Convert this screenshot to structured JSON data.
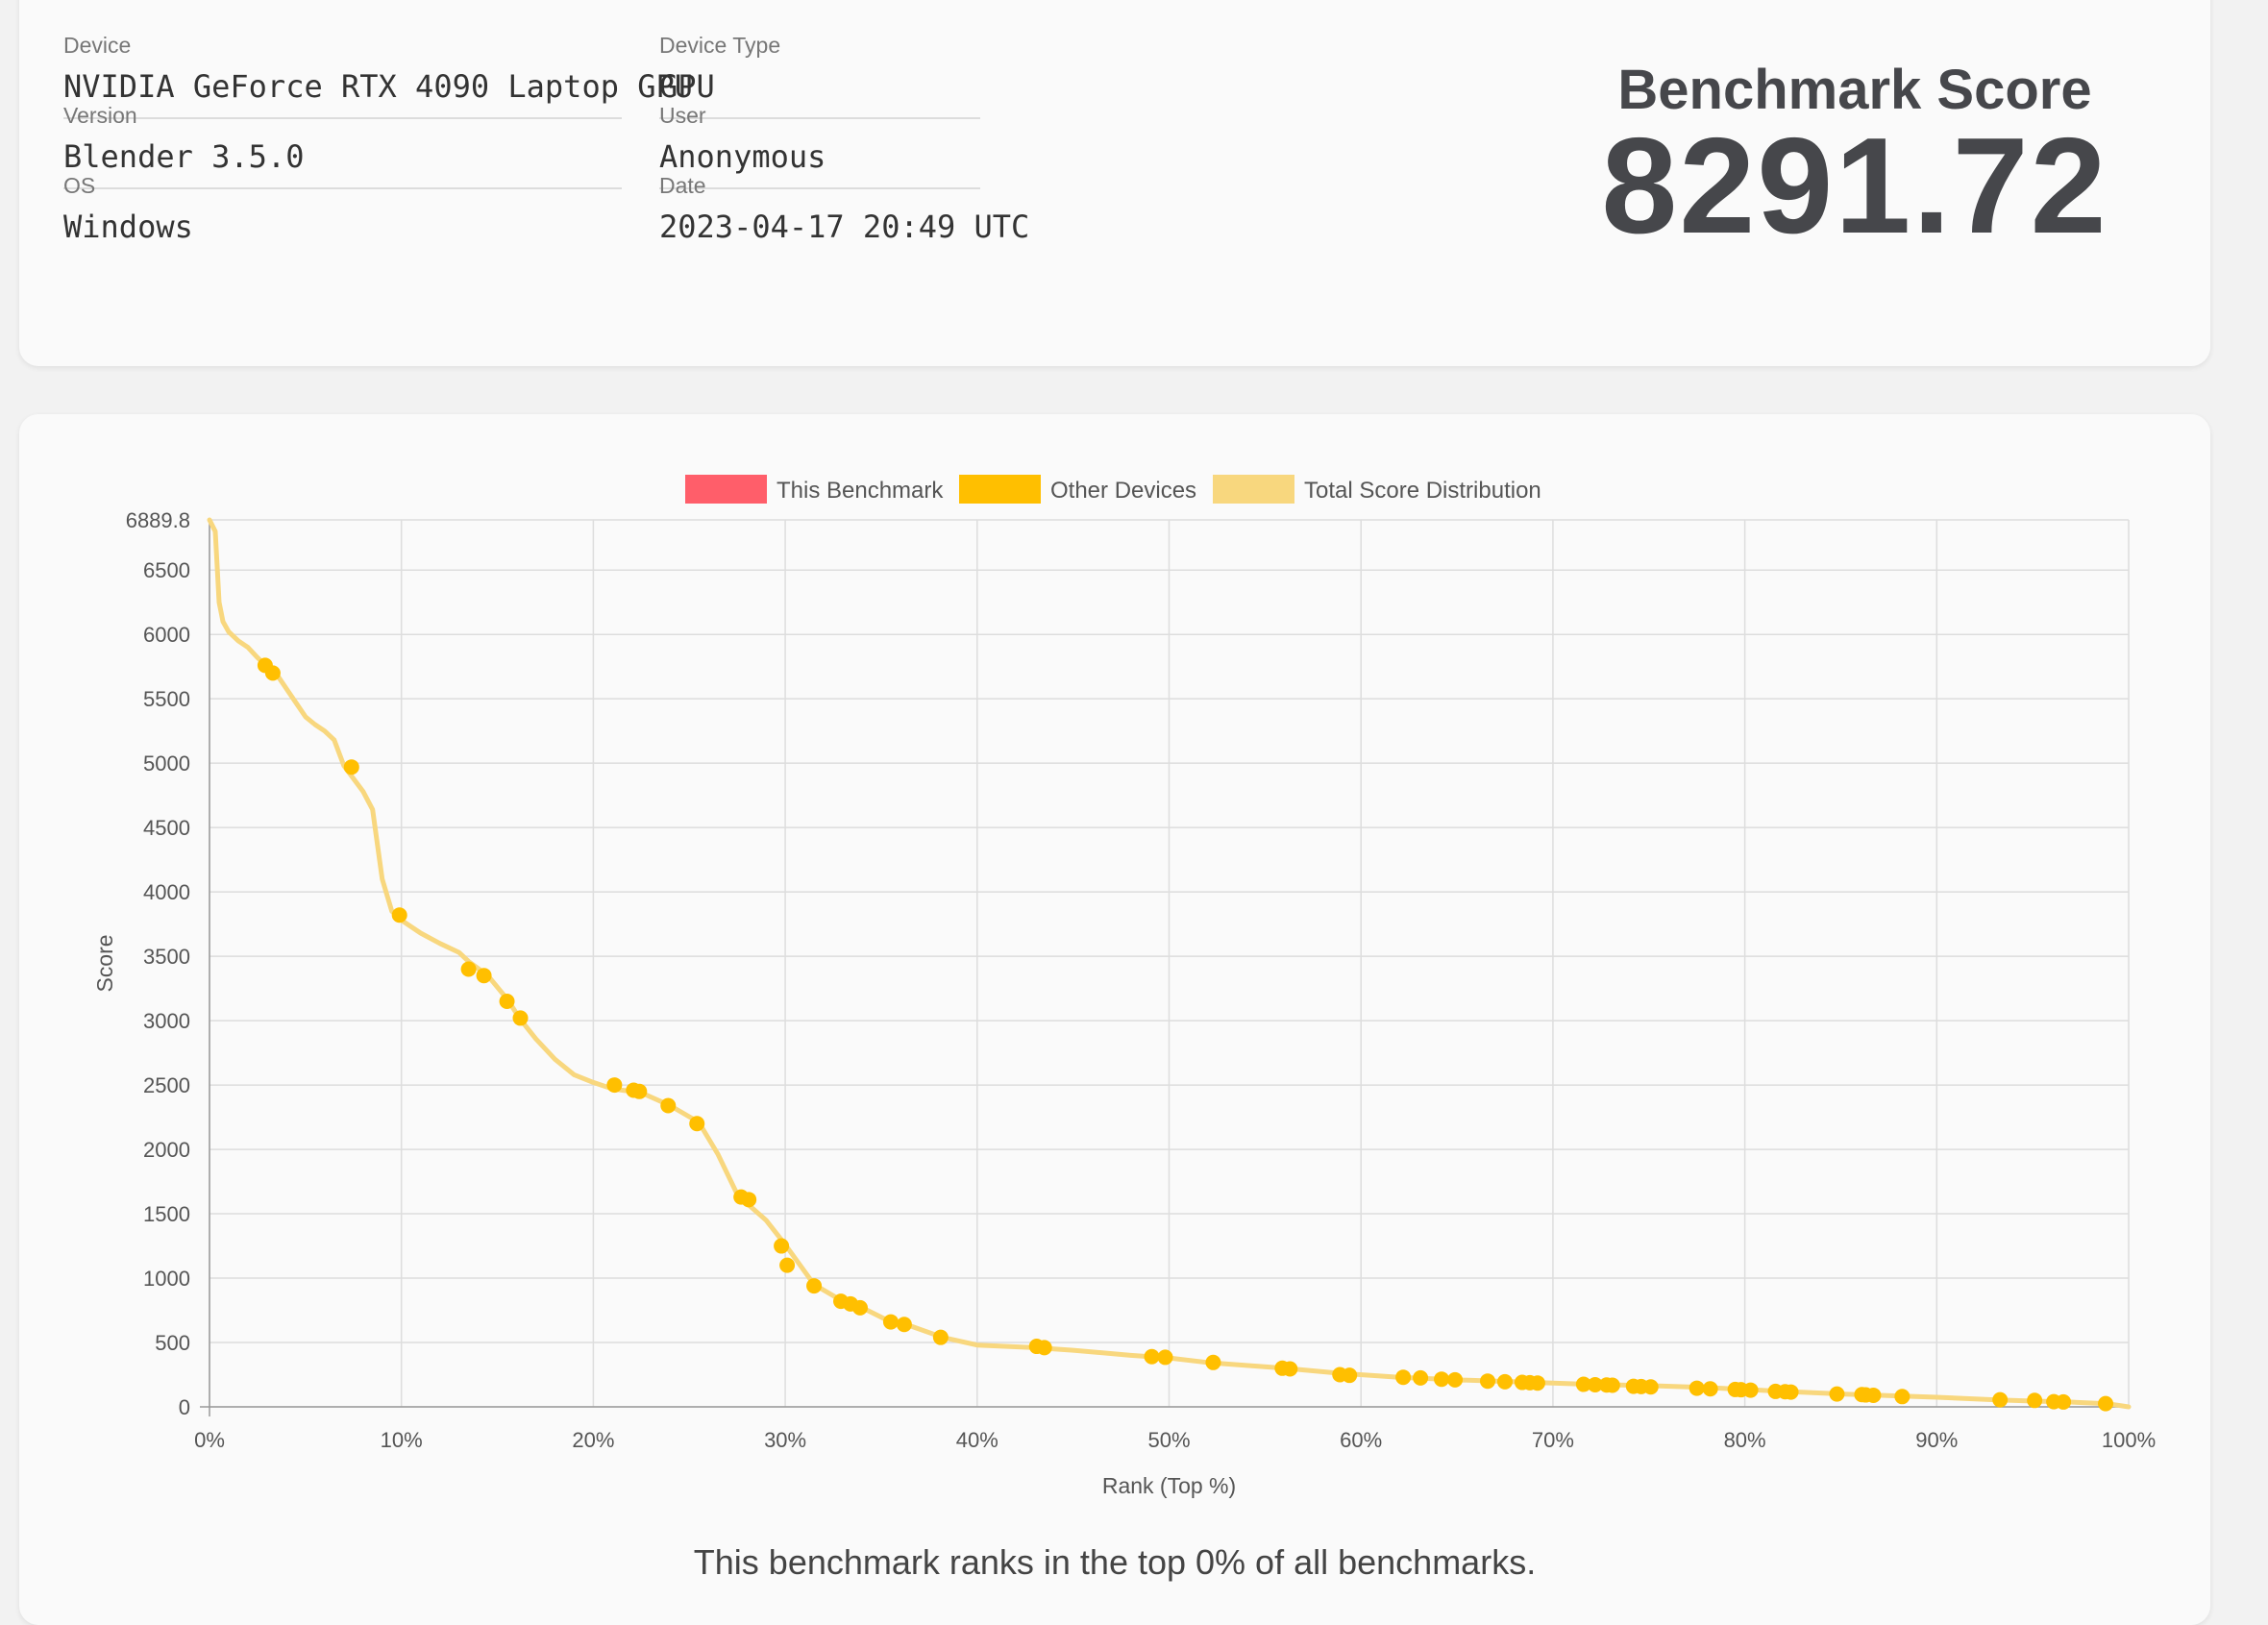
{
  "info": {
    "device_label": "Device",
    "device_value": "NVIDIA GeForce RTX 4090 Laptop GPU",
    "version_label": "Version",
    "version_value": "Blender 3.5.0",
    "os_label": "OS",
    "os_value": "Windows",
    "device_type_label": "Device Type",
    "device_type_value": "GPU",
    "user_label": "User",
    "user_value": "Anonymous",
    "date_label": "Date",
    "date_value": "2023-04-17 20:49 UTC",
    "score_heading": "Benchmark Score",
    "score_value": "8291.72"
  },
  "summary": "This benchmark ranks in the top 0% of all benchmarks.",
  "colors": {
    "this_benchmark": "#ff5e6a",
    "other_devices": "#ffbf00",
    "distribution": "#f8d77e",
    "grid": "#dddddd",
    "axis_text": "#555555"
  },
  "chart_data": {
    "type": "line",
    "xlabel": "Rank (Top %)",
    "ylabel": "Score",
    "xlim": [
      0,
      100
    ],
    "ylim": [
      0,
      6889.8
    ],
    "x_ticks": [
      0,
      10,
      20,
      30,
      40,
      50,
      60,
      70,
      80,
      90,
      100
    ],
    "x_tick_labels": [
      "0%",
      "10%",
      "20%",
      "30%",
      "40%",
      "50%",
      "60%",
      "70%",
      "80%",
      "90%",
      "100%"
    ],
    "y_ticks": [
      0,
      500,
      1000,
      1500,
      2000,
      2500,
      3000,
      3500,
      4000,
      4500,
      5000,
      5500,
      6000,
      6500,
      6889.8
    ],
    "y_tick_labels": [
      "0",
      "500",
      "1000",
      "1500",
      "2000",
      "2500",
      "3000",
      "3500",
      "4000",
      "4500",
      "5000",
      "5500",
      "6000",
      "6500",
      "6889.8"
    ],
    "grid": true,
    "legend_position": "top",
    "legend": [
      "This Benchmark",
      "Other Devices",
      "Total Score Distribution"
    ],
    "series": [
      {
        "name": "Total Score Distribution",
        "type": "line",
        "x": [
          0,
          0.3,
          0.5,
          0.7,
          1,
          1.5,
          2,
          2.5,
          3,
          3.5,
          4,
          4.5,
          5,
          5.5,
          6,
          6.5,
          7,
          7.5,
          8,
          8.5,
          9,
          9.5,
          10,
          11,
          12,
          13,
          13.5,
          14.5,
          15.5,
          16.2,
          17,
          18,
          19,
          20,
          21,
          22.5,
          24,
          25.5,
          26.5,
          27.5,
          28,
          29,
          30,
          31.5,
          33,
          34,
          35.5,
          36.5,
          38.2,
          40,
          43,
          45,
          48,
          50,
          52,
          56,
          59,
          62,
          65,
          68,
          70,
          72,
          75,
          78,
          80,
          82,
          85,
          88,
          90,
          93,
          95,
          96.5,
          98.9,
          100
        ],
        "y": [
          6889.8,
          6800,
          6250,
          6100,
          6020,
          5950,
          5900,
          5820,
          5750,
          5690,
          5580,
          5470,
          5360,
          5300,
          5250,
          5180,
          4980,
          4880,
          4780,
          4640,
          4100,
          3850,
          3780,
          3680,
          3600,
          3530,
          3460,
          3350,
          3170,
          3010,
          2860,
          2700,
          2580,
          2520,
          2470,
          2440,
          2340,
          2210,
          1960,
          1650,
          1580,
          1450,
          1260,
          950,
          820,
          770,
          660,
          630,
          540,
          480,
          460,
          440,
          400,
          380,
          345,
          300,
          260,
          230,
          210,
          195,
          185,
          175,
          165,
          150,
          135,
          120,
          100,
          85,
          75,
          55,
          45,
          40,
          25,
          0
        ]
      },
      {
        "name": "Other Devices",
        "type": "scatter",
        "x": [
          2.9,
          3.3,
          7.4,
          9.9,
          13.5,
          14.3,
          15.5,
          16.2,
          21.1,
          22.1,
          22.4,
          23.9,
          25.4,
          27.7,
          28.1,
          29.8,
          30.1,
          31.5,
          32.9,
          33.4,
          33.9,
          35.5,
          36.2,
          38.1,
          43.1,
          43.5,
          49.1,
          49.8,
          52.3,
          55.9,
          56.3,
          58.9,
          59.4,
          62.2,
          63.1,
          64.2,
          64.9,
          66.6,
          67.5,
          68.4,
          68.8,
          69.2,
          71.6,
          72.2,
          72.8,
          73.1,
          74.2,
          74.6,
          75.1,
          77.5,
          78.2,
          79.5,
          79.8,
          80.3,
          81.6,
          82.1,
          82.4,
          84.8,
          86.1,
          86.3,
          86.7,
          88.2,
          93.3,
          95.1,
          96.1,
          96.6,
          98.8
        ],
        "y": [
          5760,
          5700,
          4970,
          3820,
          3400,
          3350,
          3150,
          3020,
          2500,
          2460,
          2450,
          2340,
          2200,
          1630,
          1610,
          1250,
          1100,
          940,
          820,
          800,
          770,
          660,
          640,
          540,
          470,
          460,
          390,
          385,
          345,
          300,
          295,
          250,
          245,
          230,
          225,
          215,
          210,
          200,
          195,
          190,
          188,
          185,
          175,
          172,
          170,
          168,
          160,
          158,
          155,
          145,
          140,
          135,
          133,
          130,
          120,
          118,
          115,
          100,
          95,
          93,
          90,
          80,
          55,
          50,
          40,
          38,
          25
        ]
      },
      {
        "name": "This Benchmark",
        "type": "scatter",
        "x": [],
        "y": []
      }
    ]
  }
}
